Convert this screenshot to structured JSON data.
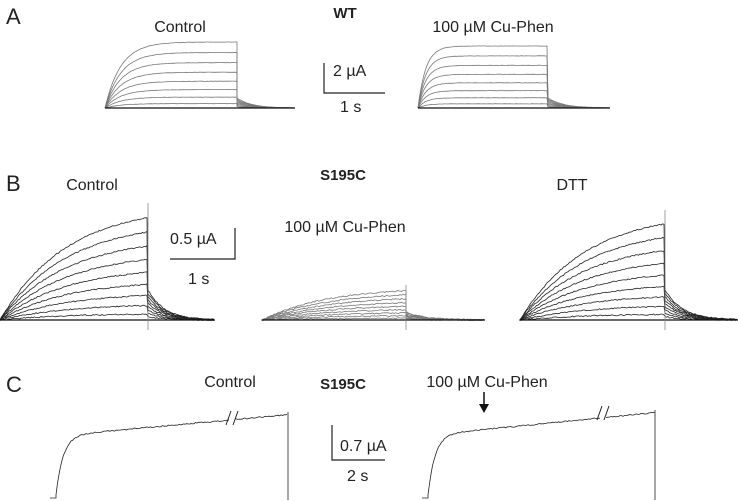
{
  "panels": [
    {
      "label": "A",
      "title": "WT",
      "conditions": [
        "Control",
        "100 µM Cu-Phen"
      ],
      "scale_bar": {
        "current": "2 µA",
        "time": "1 s"
      }
    },
    {
      "label": "B",
      "title": "S195C",
      "conditions": [
        "Control",
        "100 µM Cu-Phen",
        "DTT"
      ],
      "scale_bar": {
        "current": "0.5 µA",
        "time": "1 s"
      }
    },
    {
      "label": "C",
      "title": "S195C",
      "conditions": [
        "Control",
        "100 µM Cu-Phen"
      ],
      "scale_bar": {
        "current": "0.7 µA",
        "time": "2 s"
      }
    }
  ]
}
